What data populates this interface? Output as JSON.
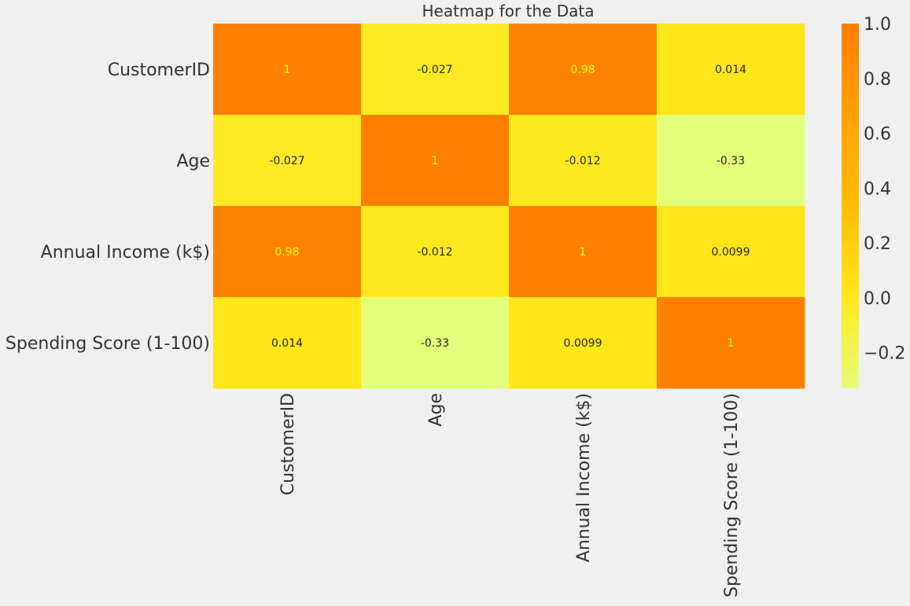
{
  "chart_data": {
    "type": "heatmap",
    "title": "Heatmap for the Data",
    "row_labels": [
      "CustomerID",
      "Age",
      "Annual Income (k$)",
      "Spending Score (1-100)"
    ],
    "col_labels": [
      "CustomerID",
      "Age",
      "Annual Income (k$)",
      "Spending Score (1-100)"
    ],
    "values": [
      [
        1,
        -0.027,
        0.98,
        0.014
      ],
      [
        -0.027,
        1,
        -0.012,
        -0.33
      ],
      [
        0.98,
        -0.012,
        1,
        0.0099
      ],
      [
        0.014,
        -0.33,
        0.0099,
        1
      ]
    ],
    "cell_labels": [
      [
        "1",
        "-0.027",
        "0.98",
        "0.014"
      ],
      [
        "-0.027",
        "1",
        "-0.012",
        "-0.33"
      ],
      [
        "0.98",
        "-0.012",
        "1",
        "0.0099"
      ],
      [
        "0.014",
        "-0.33",
        "0.0099",
        "1"
      ]
    ],
    "colorbar": {
      "range": [
        -0.33,
        1.0
      ],
      "ticks": [
        1.0,
        0.8,
        0.6,
        0.4,
        0.2,
        0.0,
        -0.2
      ],
      "tick_labels": [
        "1.0",
        "0.8",
        "0.6",
        "0.4",
        "0.2",
        "0.0",
        "−0.2"
      ],
      "colormap": "Wistia",
      "colormap_stops": [
        "#e4ff7a",
        "#ffe81a",
        "#ffbd00",
        "#ffa000",
        "#fc7f00"
      ]
    },
    "annotation_colors": {
      "light_cell": "#262626",
      "dark_cell": "#ffff00"
    },
    "background_color": "#f0f0f0",
    "text_color": "#333333"
  }
}
